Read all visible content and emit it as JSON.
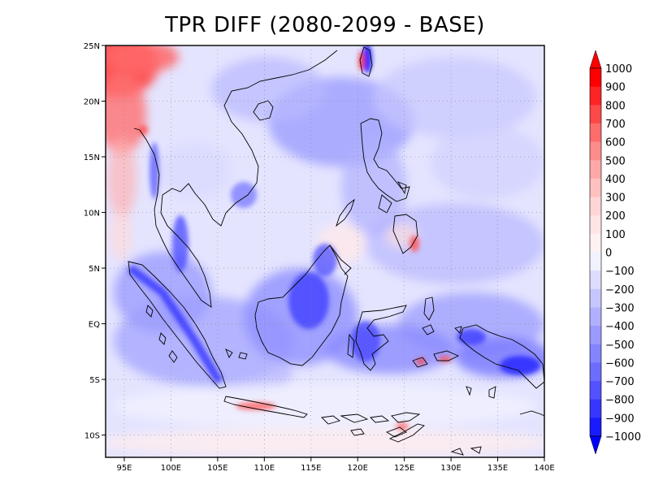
{
  "title": "TPR DIFF (2080-2099 - BASE)",
  "map": {
    "lon_range": [
      93,
      140
    ],
    "lat_range": [
      -12,
      25
    ],
    "x_ticks": [
      {
        "value": 95,
        "label": "95E"
      },
      {
        "value": 100,
        "label": "100E"
      },
      {
        "value": 105,
        "label": "105E"
      },
      {
        "value": 110,
        "label": "110E"
      },
      {
        "value": 115,
        "label": "115E"
      },
      {
        "value": 120,
        "label": "120E"
      },
      {
        "value": 125,
        "label": "125E"
      },
      {
        "value": 130,
        "label": "130E"
      },
      {
        "value": 135,
        "label": "135E"
      },
      {
        "value": 140,
        "label": "140E"
      }
    ],
    "y_ticks": [
      {
        "value": 25,
        "label": "25N"
      },
      {
        "value": 20,
        "label": "20N"
      },
      {
        "value": 15,
        "label": "15N"
      },
      {
        "value": 10,
        "label": "10N"
      },
      {
        "value": 5,
        "label": "5N"
      },
      {
        "value": 0,
        "label": "EQ"
      },
      {
        "value": -5,
        "label": "5S"
      },
      {
        "value": -10,
        "label": "10S"
      }
    ],
    "grid": "dotted"
  },
  "colorbar": {
    "labels": [
      "1000",
      "900",
      "800",
      "700",
      "600",
      "500",
      "400",
      "300",
      "200",
      "100",
      "0",
      "−100",
      "−200",
      "−300",
      "−400",
      "−500",
      "−600",
      "−700",
      "−800",
      "−900",
      "−1000"
    ],
    "colors": [
      "#ff0000",
      "#ff2424",
      "#ff4848",
      "#ff6c6c",
      "#ff8c8c",
      "#ffa8a8",
      "#ffc0c0",
      "#ffd6d6",
      "#ffe6e6",
      "#fff2f2",
      "#f2f2ff",
      "#dcdcff",
      "#c6c6ff",
      "#b0b0ff",
      "#9a9aff",
      "#8484ff",
      "#6c6cff",
      "#5252ff",
      "#3636ff",
      "#1a1aff"
    ],
    "arrow_top_color": "#ff0000",
    "arrow_bottom_color": "#0000ff"
  }
}
